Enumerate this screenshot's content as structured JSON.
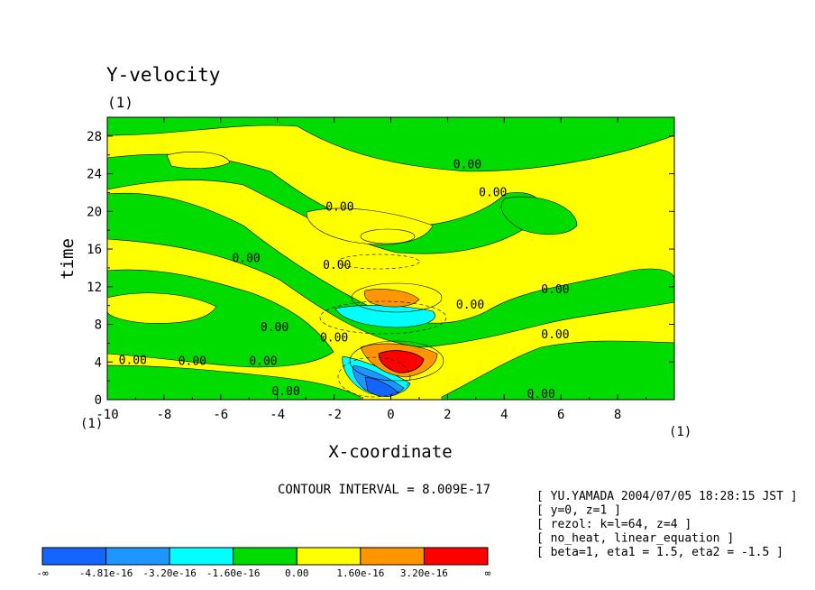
{
  "chart_data": {
    "type": "heatmap",
    "title": "Y-velocity",
    "subtitle": "(1)",
    "xlabel": "X-coordinate",
    "ylabel": "time",
    "x_unit_left": "(1)",
    "x_unit_right": "(1)",
    "xlim": [
      -10,
      10
    ],
    "ylim": [
      0,
      30
    ],
    "xticks": [
      -10,
      -8,
      -6,
      -4,
      -2,
      0,
      2,
      4,
      6,
      8
    ],
    "yticks": [
      0,
      4,
      8,
      12,
      16,
      20,
      24,
      28
    ],
    "contour_interval_text": "CONTOUR INTERVAL = 8.009E-17",
    "contour_labels": [
      {
        "text": "0.00",
        "x": -9.1,
        "y": 3.8
      },
      {
        "text": "0.00",
        "x": -7.0,
        "y": 3.7
      },
      {
        "text": "0.00",
        "x": -4.5,
        "y": 3.7
      },
      {
        "text": "0.00",
        "x": -3.7,
        "y": 0.5
      },
      {
        "text": "0.00",
        "x": -2.0,
        "y": 6.2
      },
      {
        "text": "0.00",
        "x": -4.1,
        "y": 7.3
      },
      {
        "text": "0.00",
        "x": -5.1,
        "y": 14.6
      },
      {
        "text": "0.00",
        "x": -1.9,
        "y": 13.9
      },
      {
        "text": "0.00",
        "x": -1.8,
        "y": 20.1
      },
      {
        "text": "0.00",
        "x": 2.7,
        "y": 24.6
      },
      {
        "text": "0.00",
        "x": 3.6,
        "y": 21.6
      },
      {
        "text": "0.00",
        "x": 2.8,
        "y": 9.7
      },
      {
        "text": "0.00",
        "x": 5.8,
        "y": 11.3
      },
      {
        "text": "0.00",
        "x": 5.8,
        "y": 6.5
      },
      {
        "text": "0.00",
        "x": 5.3,
        "y": 0.2
      }
    ],
    "colorbar": {
      "colors": [
        "#1464ff",
        "#1e96ff",
        "#00ffff",
        "#00dc00",
        "#ffff00",
        "#ff9600",
        "#ff0000"
      ],
      "labels": [
        "-∞",
        "-4.81e-16",
        "-3.20e-16",
        "-1.60e-16",
        "0.00",
        "1.60e-16",
        "3.20e-16",
        "∞"
      ]
    }
  },
  "info_lines": [
    "[ YU.YAMADA 2004/07/05 18:28:15 JST ]",
    "[ y=0, z=1 ]",
    "[ rezol: k=l=64, z=4 ]",
    "[ no_heat, linear_equation ]",
    "[ beta=1, eta1 = 1.5, eta2 = -1.5 ]"
  ]
}
